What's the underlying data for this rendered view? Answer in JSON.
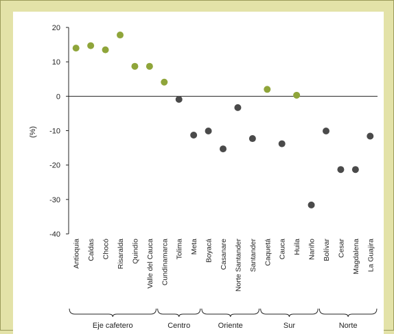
{
  "chart_data": {
    "type": "scatter",
    "title": "",
    "xlabel": "",
    "ylabel": "(%)",
    "ylim": [
      -40,
      20
    ],
    "yticks": [
      20,
      10,
      0,
      -10,
      -20,
      -30,
      -40
    ],
    "grid": false,
    "colors": {
      "highlight": "#8fa53a",
      "default": "#4a4a4a"
    },
    "categories": [
      "Antioquia",
      "Caldas",
      "Chocó",
      "Risaralda",
      "Quindío",
      "Valle del Cauca",
      "Cundinamarca",
      "Tolima",
      "Meta",
      "Boyacá",
      "Casanare",
      "Norte Santander",
      "Santander",
      "Caquetá",
      "Cauca",
      "Huila",
      "Nariño",
      "Bolívar",
      "Cesar",
      "Magdalena",
      "La Guajira"
    ],
    "values": [
      14.0,
      14.7,
      13.5,
      17.8,
      8.7,
      8.7,
      4.1,
      -0.9,
      -11.3,
      -10.1,
      -15.3,
      -3.3,
      -12.3,
      2.0,
      -13.8,
      0.3,
      -31.6,
      -10.1,
      -21.3,
      -21.3,
      -11.6
    ],
    "highlighted": [
      true,
      true,
      true,
      true,
      true,
      true,
      true,
      false,
      false,
      false,
      false,
      false,
      false,
      true,
      false,
      true,
      false,
      false,
      false,
      false,
      false
    ],
    "groups": [
      {
        "name": "Eje cafetero",
        "start": 0,
        "end": 5
      },
      {
        "name": "Centro",
        "start": 6,
        "end": 8
      },
      {
        "name": "Oriente",
        "start": 9,
        "end": 12
      },
      {
        "name": "Sur",
        "start": 13,
        "end": 16
      },
      {
        "name": "Norte",
        "start": 17,
        "end": 20
      }
    ]
  }
}
